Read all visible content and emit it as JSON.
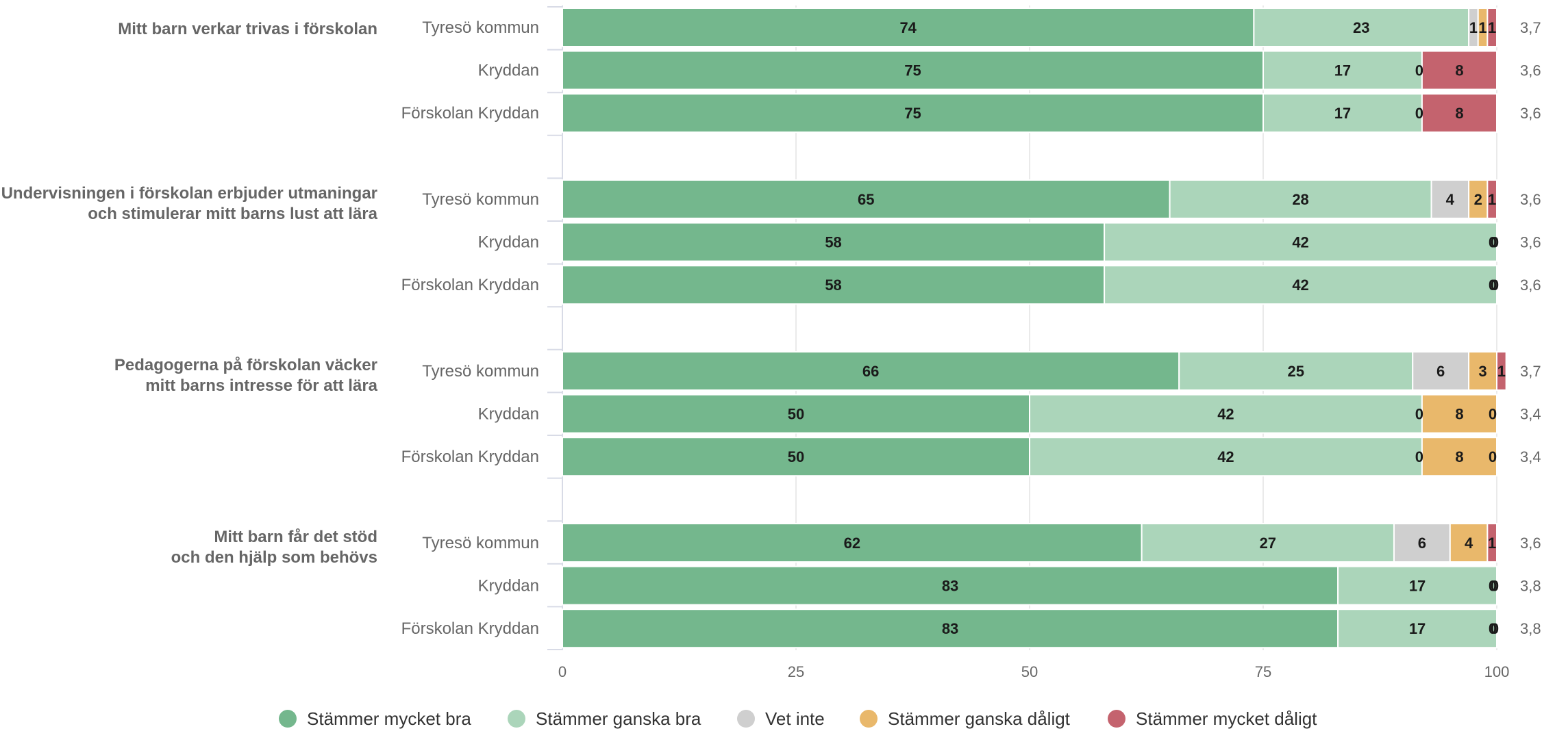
{
  "chart_data": {
    "type": "bar",
    "orientation": "horizontal",
    "stacked": true,
    "xlim": [
      0,
      100
    ],
    "ticks": [
      0,
      25,
      50,
      75,
      100
    ],
    "grid": true,
    "legend_position": "bottom",
    "series": [
      {
        "name": "Stämmer mycket bra",
        "color": "#74b78d"
      },
      {
        "name": "Stämmer ganska bra",
        "color": "#abd5ba"
      },
      {
        "name": "Vet inte",
        "color": "#cfcfcf"
      },
      {
        "name": "Stämmer ganska dåligt",
        "color": "#e9b86b"
      },
      {
        "name": "Stämmer mycket dåligt",
        "color": "#c4636e"
      }
    ],
    "groups": [
      {
        "question": [
          "Mitt barn verkar trivas i förskolan"
        ],
        "rows": [
          {
            "label": "Tyresö kommun",
            "values": [
              74,
              23,
              1,
              1,
              1
            ],
            "mean": "3,7"
          },
          {
            "label": "Kryddan",
            "values": [
              75,
              17,
              0,
              0,
              8
            ],
            "mean": "3,6"
          },
          {
            "label": "Förskolan Kryddan",
            "values": [
              75,
              17,
              0,
              0,
              8
            ],
            "mean": "3,6"
          }
        ]
      },
      {
        "question": [
          "Undervisningen i förskolan erbjuder utmaningar",
          "och stimulerar mitt barns lust att lära"
        ],
        "rows": [
          {
            "label": "Tyresö kommun",
            "values": [
              65,
              28,
              4,
              2,
              1
            ],
            "mean": "3,6"
          },
          {
            "label": "Kryddan",
            "values": [
              58,
              42,
              0,
              0,
              0
            ],
            "mean": "3,6"
          },
          {
            "label": "Förskolan Kryddan",
            "values": [
              58,
              42,
              0,
              0,
              0
            ],
            "mean": "3,6"
          }
        ]
      },
      {
        "question": [
          "Pedagogerna på förskolan väcker",
          "mitt barns intresse för att lära"
        ],
        "rows": [
          {
            "label": "Tyresö kommun",
            "values": [
              66,
              25,
              6,
              3,
              1
            ],
            "mean": "3,7"
          },
          {
            "label": "Kryddan",
            "values": [
              50,
              42,
              0,
              8,
              0
            ],
            "mean": "3,4"
          },
          {
            "label": "Förskolan Kryddan",
            "values": [
              50,
              42,
              0,
              8,
              0
            ],
            "mean": "3,4"
          }
        ]
      },
      {
        "question": [
          "Mitt barn får det stöd",
          "och den hjälp som behövs"
        ],
        "rows": [
          {
            "label": "Tyresö kommun",
            "values": [
              62,
              27,
              6,
              4,
              1
            ],
            "mean": "3,6"
          },
          {
            "label": "Kryddan",
            "values": [
              83,
              17,
              0,
              0,
              0
            ],
            "mean": "3,8"
          },
          {
            "label": "Förskolan Kryddan",
            "values": [
              83,
              17,
              0,
              0,
              0
            ],
            "mean": "3,8"
          }
        ]
      }
    ]
  }
}
